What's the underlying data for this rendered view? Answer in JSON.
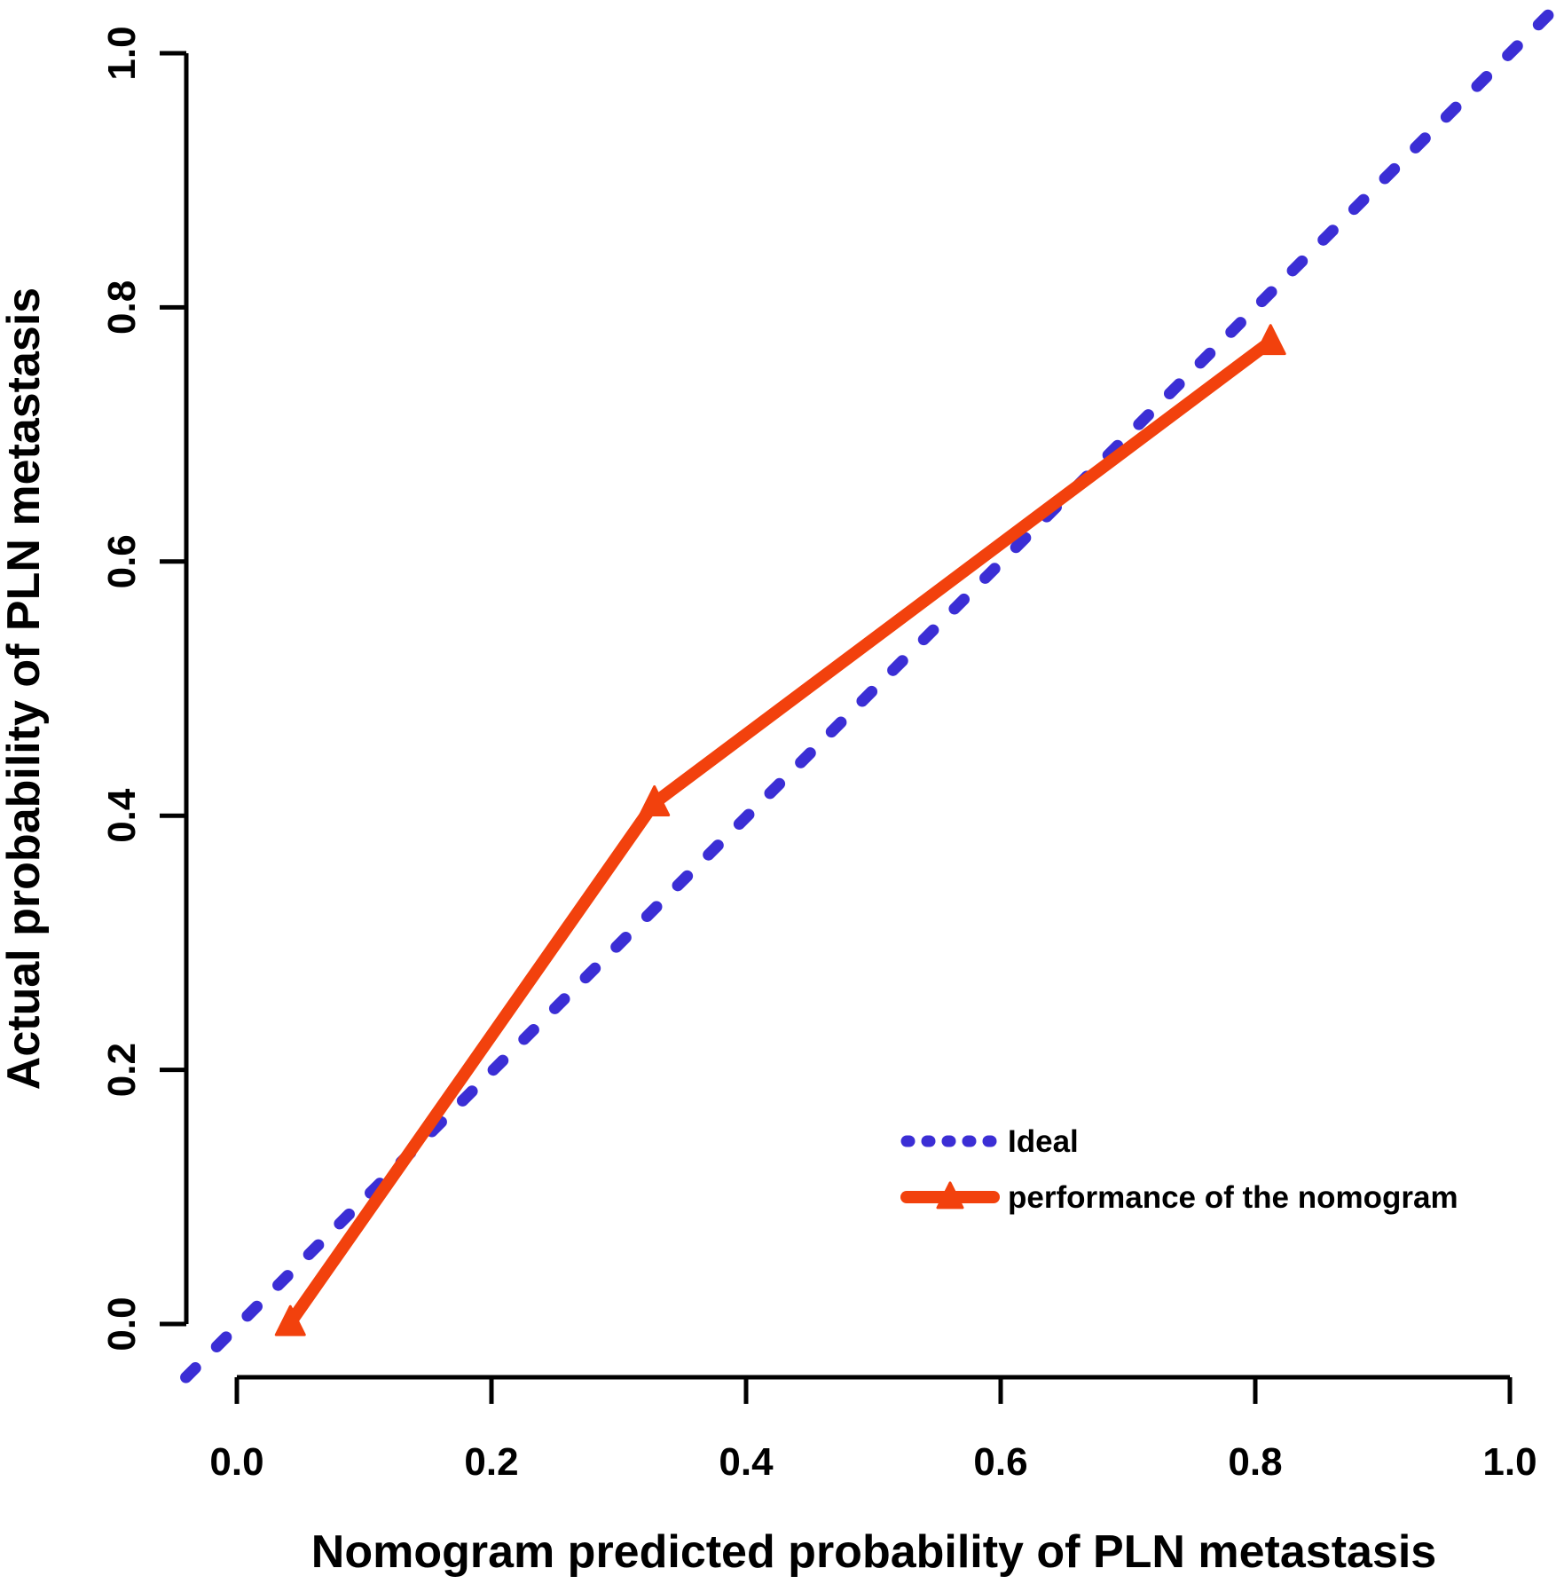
{
  "chart_data": {
    "type": "line",
    "title": "",
    "xlabel": "Nomogram predicted probability of PLN metastasis",
    "ylabel": "Actual probability of PLN metastasis",
    "xlim": [
      0,
      1
    ],
    "ylim": [
      0,
      1
    ],
    "x_ticks": [
      "0.0",
      "0.2",
      "0.4",
      "0.6",
      "0.8",
      "1.0"
    ],
    "y_ticks": [
      "0.0",
      "0.2",
      "0.4",
      "0.6",
      "0.8",
      "1.0"
    ],
    "grid": false,
    "axis_color": "#000000",
    "legend_position": "inside-lower-right",
    "series": [
      {
        "name": "Ideal",
        "style": "dashed",
        "color": "#3b2ed5",
        "marker": "none",
        "points": [
          [
            -0.04,
            -0.042
          ],
          [
            1.038,
            1.038
          ]
        ]
      },
      {
        "name": "performance of the nomogram",
        "style": "solid",
        "color": "#f2410d",
        "marker": "triangle-up",
        "points": [
          [
            0.042,
            0.001
          ],
          [
            0.328,
            0.41
          ],
          [
            0.812,
            0.773
          ]
        ]
      }
    ]
  }
}
